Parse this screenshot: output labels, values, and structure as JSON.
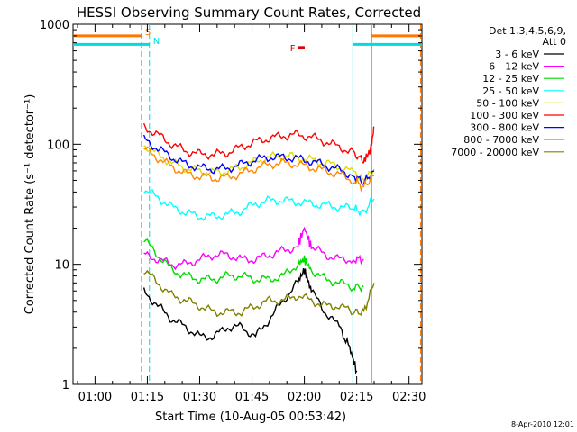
{
  "chart_data": {
    "type": "line",
    "title": "HESSI Observing Summary Count Rates, Corrected",
    "xlabel": "Start Time (10-Aug-05 00:53:42)",
    "ylabel": "Corrected Count Rate (s⁻¹ detector⁻¹)",
    "yscale": "log",
    "ylim": [
      1,
      1000
    ],
    "xlim_minutes": [
      53.7,
      153.7
    ],
    "x_ticks": [
      {
        "label": "01:00",
        "minute": 60
      },
      {
        "label": "01:15",
        "minute": 75
      },
      {
        "label": "01:30",
        "minute": 90
      },
      {
        "label": "01:45",
        "minute": 105
      },
      {
        "label": "02:00",
        "minute": 120
      },
      {
        "label": "02:15",
        "minute": 135
      },
      {
        "label": "02:30",
        "minute": 150
      }
    ],
    "y_ticks": [
      {
        "label": "1",
        "value": 1
      },
      {
        "label": "10",
        "value": 10
      },
      {
        "label": "100",
        "value": 100
      },
      {
        "label": "1000",
        "value": 1000
      }
    ],
    "legend": {
      "placement": "top-right",
      "header": [
        "Det 1,3,4,5,6,9,",
        "Att 0"
      ]
    },
    "series": [
      {
        "name": "3 - 6 keV",
        "color": "#000000",
        "x": [
          74,
          78,
          82,
          86,
          90,
          94,
          98,
          102,
          106,
          110,
          114,
          118,
          120,
          122,
          126,
          130,
          133,
          135
        ],
        "values": [
          6,
          4.5,
          3.5,
          3,
          2.5,
          2.5,
          3,
          3,
          2.5,
          3.5,
          5,
          7,
          9,
          6,
          4,
          3,
          2,
          1.3
        ]
      },
      {
        "name": "6 - 12 keV",
        "color": "#ff00ff",
        "x": [
          74,
          78,
          82,
          86,
          90,
          94,
          98,
          102,
          106,
          110,
          114,
          118,
          120,
          122,
          126,
          130,
          134,
          137
        ],
        "values": [
          12,
          11,
          10,
          10,
          11,
          12,
          12,
          11,
          11,
          12,
          13,
          14,
          20,
          14,
          12,
          11,
          11,
          11
        ]
      },
      {
        "name": "12 - 25 keV",
        "color": "#00dd00",
        "x": [
          74,
          78,
          82,
          86,
          90,
          94,
          98,
          102,
          106,
          110,
          114,
          118,
          120,
          122,
          126,
          130,
          134,
          137
        ],
        "values": [
          16,
          12,
          9,
          8,
          7.5,
          7.5,
          8,
          8,
          7.5,
          7.5,
          8,
          10,
          11,
          9,
          7.5,
          7,
          6.5,
          6.5
        ]
      },
      {
        "name": "25 - 50 keV",
        "color": "#00ffff",
        "x": [
          74,
          78,
          82,
          86,
          90,
          94,
          98,
          102,
          106,
          110,
          114,
          118,
          122,
          126,
          130,
          134,
          137,
          140
        ],
        "values": [
          42,
          36,
          30,
          27,
          25,
          25,
          26,
          28,
          32,
          34,
          34,
          33,
          32,
          31,
          30,
          29,
          27,
          35
        ]
      },
      {
        "name": "50 - 100 keV",
        "color": "#dddd00",
        "x": [
          74,
          78,
          82,
          86,
          90,
          94,
          98,
          102,
          106,
          110,
          114,
          118,
          122,
          126,
          130,
          134,
          137,
          140
        ],
        "values": [
          100,
          82,
          70,
          63,
          60,
          58,
          60,
          65,
          72,
          78,
          80,
          78,
          74,
          70,
          65,
          58,
          50,
          62
        ]
      },
      {
        "name": "100 - 300 keV",
        "color": "#ff0000",
        "x": [
          74,
          78,
          82,
          86,
          90,
          94,
          98,
          102,
          106,
          110,
          114,
          118,
          122,
          126,
          130,
          134,
          137,
          139,
          140
        ],
        "values": [
          140,
          120,
          100,
          88,
          83,
          82,
          85,
          95,
          105,
          112,
          118,
          120,
          115,
          105,
          95,
          85,
          72,
          90,
          140
        ]
      },
      {
        "name": "300 - 800 keV",
        "color": "#0000ff",
        "x": [
          74,
          78,
          82,
          86,
          90,
          94,
          98,
          102,
          106,
          110,
          114,
          118,
          122,
          126,
          130,
          134,
          137,
          140
        ],
        "values": [
          110,
          92,
          78,
          68,
          64,
          62,
          63,
          68,
          74,
          78,
          78,
          76,
          72,
          67,
          61,
          55,
          48,
          60
        ]
      },
      {
        "name": "800 - 7000 keV",
        "color": "#ff8800",
        "x": [
          74,
          78,
          82,
          86,
          90,
          94,
          98,
          102,
          106,
          110,
          114,
          118,
          122,
          126,
          130,
          134,
          137,
          140
        ],
        "values": [
          92,
          77,
          65,
          57,
          54,
          52,
          53,
          57,
          63,
          68,
          70,
          68,
          64,
          60,
          56,
          50,
          44,
          55
        ]
      },
      {
        "name": "7000 - 20000 keV",
        "color": "#808000",
        "x": [
          74,
          78,
          82,
          86,
          90,
          94,
          98,
          102,
          106,
          110,
          114,
          118,
          122,
          126,
          130,
          134,
          137,
          140
        ],
        "values": [
          9,
          7,
          5.5,
          5,
          4.5,
          4,
          4,
          4,
          4.5,
          5,
          5,
          5.5,
          5,
          4.5,
          4.5,
          4,
          4,
          7
        ]
      }
    ],
    "markers": [
      {
        "label": "S",
        "color": "#ff7700",
        "minute": 73.3
      },
      {
        "label": "N",
        "color": "#00dddd",
        "minute": 75.6
      },
      {
        "label": "F",
        "color": "#dd0000",
        "minute": 119
      }
    ],
    "vlines": [
      {
        "minute": 73.3,
        "color": "#ff7700",
        "style": "dashed"
      },
      {
        "minute": 75.6,
        "color": "#00dddd",
        "style": "dashed"
      },
      {
        "minute": 133.9,
        "color": "#00dddd",
        "style": "solid"
      },
      {
        "minute": 139.3,
        "color": "#ff7700",
        "style": "solid"
      },
      {
        "minute": 153.3,
        "color": "#ff7700",
        "style": "dashed"
      }
    ],
    "top_bars": [
      {
        "color": "#ff7700",
        "from_minute": 53.7,
        "to_minute": 73.3,
        "value": 800
      },
      {
        "color": "#00dddd",
        "from_minute": 53.7,
        "to_minute": 75.6,
        "value": 680
      },
      {
        "color": "#ff7700",
        "from_minute": 139.3,
        "to_minute": 153.7,
        "value": 800
      },
      {
        "color": "#00dddd",
        "from_minute": 133.9,
        "to_minute": 153.7,
        "value": 680
      }
    ],
    "flare_bar": {
      "color": "#dd0000",
      "from_minute": 118.3,
      "to_minute": 120.1,
      "value": 640
    },
    "date_stamp": "8-Apr-2010 12:01"
  }
}
